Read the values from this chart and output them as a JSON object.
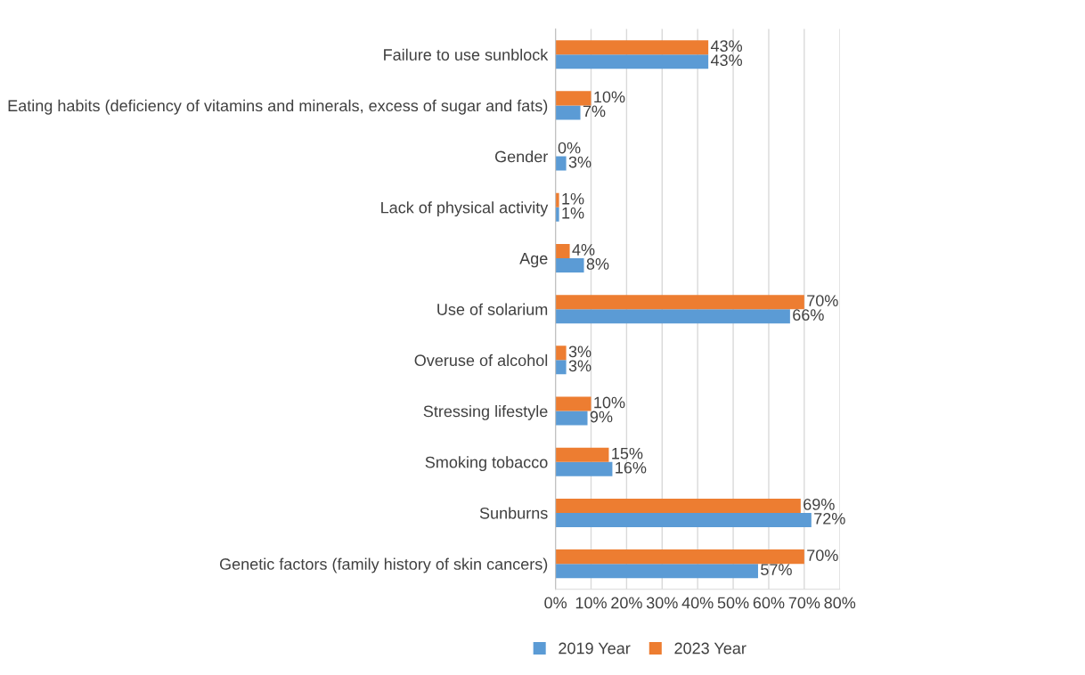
{
  "chart_data": {
    "type": "bar",
    "orientation": "horizontal",
    "categories": [
      "Failure to use sunblock",
      "Eating habits (deficiency of vitamins and minerals, excess of sugar and fats)",
      "Gender",
      "Lack of physical activity",
      "Age",
      "Use of solarium",
      "Overuse of alcohol",
      "Stressing lifestyle",
      "Smoking tobacco",
      "Sunburns",
      "Genetic factors (family history of skin cancers)"
    ],
    "series": [
      {
        "name": "2019 Year",
        "color": "#5b9bd5",
        "values": [
          43,
          7,
          3,
          1,
          8,
          66,
          3,
          9,
          16,
          72,
          57
        ],
        "value_labels": [
          "43%",
          "7%",
          "3%",
          "1%",
          "8%",
          "66%",
          "3%",
          "9%",
          "16%",
          "72%",
          "57%"
        ]
      },
      {
        "name": "2023 Year",
        "color": "#ed7d31",
        "values": [
          43,
          10,
          0,
          1,
          4,
          70,
          3,
          10,
          15,
          69,
          70
        ],
        "value_labels": [
          "43%",
          "10%",
          "0%",
          "1%",
          "4%",
          "70%",
          "3%",
          "10%",
          "15%",
          "69%",
          "70%"
        ]
      }
    ],
    "xlim": [
      0,
      80
    ],
    "xticks": [
      {
        "value": 0,
        "label": "0%"
      },
      {
        "value": 10,
        "label": "10%"
      },
      {
        "value": 20,
        "label": "20%"
      },
      {
        "value": 30,
        "label": "30%"
      },
      {
        "value": 40,
        "label": "40%"
      },
      {
        "value": 50,
        "label": "50%"
      },
      {
        "value": 60,
        "label": "60%"
      },
      {
        "value": 70,
        "label": "70%"
      },
      {
        "value": 80,
        "label": "80%"
      }
    ],
    "grid": "x",
    "legend": "bottom"
  }
}
